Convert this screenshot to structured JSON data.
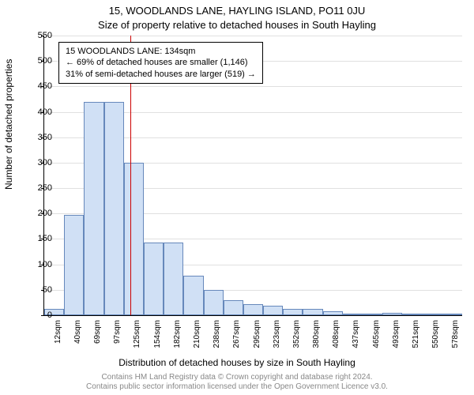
{
  "titles": {
    "line1": "15, WOODLANDS LANE, HAYLING ISLAND, PO11 0JU",
    "line2": "Size of property relative to detached houses in South Hayling"
  },
  "ylabel": "Number of detached properties",
  "xlabel": "Distribution of detached houses by size in South Hayling",
  "footer": {
    "line1": "Contains HM Land Registry data © Crown copyright and database right 2024.",
    "line2": "Contains public sector information licensed under the Open Government Licence v3.0."
  },
  "chart": {
    "type": "histogram",
    "background_color": "#ffffff",
    "grid_color": "#e0e0e0",
    "bar_fill": "#d0e0f5",
    "bar_border": "#6688bb",
    "ref_line_color": "#cc0000",
    "ylim": [
      0,
      550
    ],
    "yticks": [
      0,
      50,
      100,
      150,
      200,
      250,
      300,
      350,
      400,
      450,
      500,
      550
    ],
    "xticks": [
      "12sqm",
      "40sqm",
      "69sqm",
      "97sqm",
      "125sqm",
      "154sqm",
      "182sqm",
      "210sqm",
      "238sqm",
      "267sqm",
      "295sqm",
      "323sqm",
      "352sqm",
      "380sqm",
      "408sqm",
      "437sqm",
      "465sqm",
      "493sqm",
      "521sqm",
      "550sqm",
      "578sqm"
    ],
    "bars": [
      12,
      198,
      420,
      420,
      300,
      143,
      143,
      78,
      50,
      30,
      22,
      18,
      12,
      12,
      8,
      2,
      3,
      4,
      2,
      2,
      2
    ],
    "reference_index": 4,
    "annotation": {
      "line1": "15 WOODLANDS LANE: 134sqm",
      "line2": "← 69% of detached houses are smaller (1,146)",
      "line3": "31% of semi-detached houses are larger (519) →"
    }
  }
}
